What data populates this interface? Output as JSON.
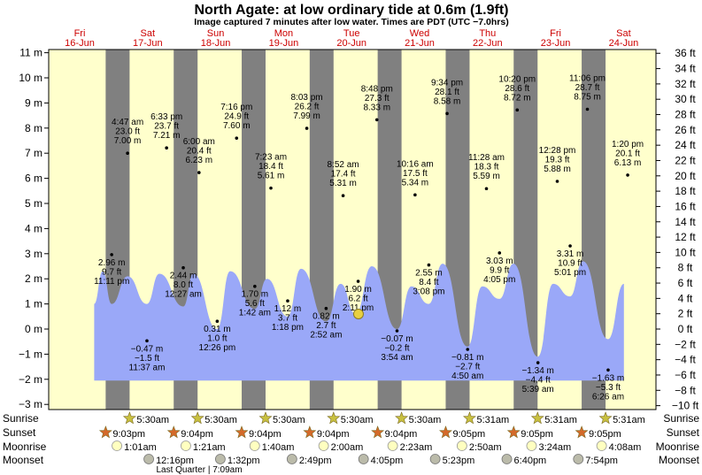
{
  "title": "North Agate: at low  ordinary tide at 0.6m (1.9ft)",
  "subtitle": "Image captured 7 minutes after low water. Times are PDT (UTC −7.0hrs)",
  "colors": {
    "day": "#ffffcc",
    "night": "#808080",
    "water": "#9aa8f8",
    "date_text": "#cc0000",
    "sun_star": "#c8c040",
    "set_star": "#d46a2a",
    "moon": "#ffffc0",
    "moonset": "#bbbbaa",
    "current_marker": "#e8d040"
  },
  "days": [
    {
      "weekday": "Fri",
      "date": "16-Jun"
    },
    {
      "weekday": "Sat",
      "date": "17-Jun"
    },
    {
      "weekday": "Sun",
      "date": "18-Jun"
    },
    {
      "weekday": "Mon",
      "date": "19-Jun"
    },
    {
      "weekday": "Tue",
      "date": "20-Jun"
    },
    {
      "weekday": "Wed",
      "date": "21-Jun"
    },
    {
      "weekday": "Thu",
      "date": "22-Jun"
    },
    {
      "weekday": "Fri",
      "date": "23-Jun"
    },
    {
      "weekday": "Sat",
      "date": "24-Jun"
    }
  ],
  "left_axis": [
    "11 m",
    "10 m",
    "9 m",
    "8 m",
    "7 m",
    "6 m",
    "5 m",
    "4 m",
    "3 m",
    "2 m",
    "1 m",
    "0 m",
    "−1 m",
    "−2 m",
    "−3 m"
  ],
  "right_axis": [
    "36 ft",
    "34 ft",
    "32 ft",
    "30 ft",
    "28 ft",
    "26 ft",
    "24 ft",
    "22 ft",
    "20 ft",
    "18 ft",
    "16 ft",
    "14 ft",
    "12 ft",
    "10 ft",
    "8 ft",
    "6 ft",
    "4 ft",
    "2 ft",
    "0 ft",
    "−2 ft",
    "−4 ft",
    "−6 ft",
    "−8 ft",
    "−10 ft"
  ],
  "row_labels": [
    "Sunrise",
    "Sunset",
    "Moonrise",
    "Moonset"
  ],
  "chart_data": {
    "type": "area",
    "title": "North Agate: at low  ordinary tide at 0.6m (1.9ft)",
    "xlabel": "",
    "ylabel": "",
    "y_unit_left": "m",
    "y_unit_right": "ft",
    "ylim_m": [
      -3.2,
      11.2
    ],
    "ylim_ft": [
      -10.5,
      36.7
    ],
    "grid": false,
    "current_level_m": 0.6,
    "tide_points": [
      {
        "day": 0,
        "hour": 23.18,
        "m": 2.96,
        "label": [
          "2.96 m",
          "9.7 ft",
          "11:11 pm"
        ]
      },
      {
        "day": 1,
        "hour": 4.78,
        "m": 7.0,
        "label": [
          "4:47 am",
          "23.0 ft",
          "7.00 m"
        ]
      },
      {
        "day": 1,
        "hour": 11.62,
        "m": -0.47,
        "label": [
          "−0.47 m",
          "−1.5 ft",
          "11:37 am"
        ]
      },
      {
        "day": 1,
        "hour": 18.55,
        "m": 7.21,
        "label": [
          "6:33 pm",
          "23.7 ft",
          "7.21 m"
        ]
      },
      {
        "day": 2,
        "hour": 0.45,
        "m": 2.44,
        "label": [
          "2.44 m",
          "8.0 ft",
          "12:27 am"
        ]
      },
      {
        "day": 2,
        "hour": 6.0,
        "m": 6.23,
        "label": [
          "6:00 am",
          "20.4 ft",
          "6.23 m"
        ]
      },
      {
        "day": 2,
        "hour": 12.43,
        "m": 0.31,
        "label": [
          "0.31 m",
          "1.0 ft",
          "12:26 pm"
        ]
      },
      {
        "day": 2,
        "hour": 19.27,
        "m": 7.6,
        "label": [
          "7:16 pm",
          "24.9 ft",
          "7.60 m"
        ]
      },
      {
        "day": 3,
        "hour": 1.7,
        "m": 1.7,
        "label": [
          "1.70 m",
          "5.6 ft",
          "1:42 am"
        ]
      },
      {
        "day": 3,
        "hour": 7.38,
        "m": 5.61,
        "label": [
          "7:23 am",
          "18.4 ft",
          "5.61 m"
        ]
      },
      {
        "day": 3,
        "hour": 13.3,
        "m": 1.12,
        "label": [
          "1.12 m",
          "3.7 ft",
          "1:18 pm"
        ]
      },
      {
        "day": 3,
        "hour": 20.05,
        "m": 7.99,
        "label": [
          "8:03 pm",
          "26.2 ft",
          "7.99 m"
        ]
      },
      {
        "day": 4,
        "hour": 2.87,
        "m": 0.82,
        "label": [
          "0.82 m",
          "2.7 ft",
          "2:52 am"
        ]
      },
      {
        "day": 4,
        "hour": 8.87,
        "m": 5.31,
        "label": [
          "8:52 am",
          "17.4 ft",
          "5.31 m"
        ]
      },
      {
        "day": 4,
        "hour": 14.18,
        "m": 1.9,
        "label": [
          "1.90 m",
          "6.2 ft",
          "2:11 pm"
        ]
      },
      {
        "day": 4,
        "hour": 20.8,
        "m": 8.33,
        "label": [
          "8:48 pm",
          "27.3 ft",
          "8.33 m"
        ]
      },
      {
        "day": 5,
        "hour": 3.9,
        "m": -0.07,
        "label": [
          "−0.07 m",
          "−0.2 ft",
          "3:54 am"
        ]
      },
      {
        "day": 5,
        "hour": 10.27,
        "m": 5.34,
        "label": [
          "10:16 am",
          "17.5 ft",
          "5.34 m"
        ]
      },
      {
        "day": 5,
        "hour": 15.13,
        "m": 2.55,
        "label": [
          "2.55 m",
          "8.4 ft",
          "3:08 pm"
        ]
      },
      {
        "day": 5,
        "hour": 21.57,
        "m": 8.58,
        "label": [
          "9:34 pm",
          "28.1 ft",
          "8.58 m"
        ]
      },
      {
        "day": 6,
        "hour": 4.83,
        "m": -0.81,
        "label": [
          "−0.81 m",
          "−2.7 ft",
          "4:50 am"
        ]
      },
      {
        "day": 6,
        "hour": 11.47,
        "m": 5.59,
        "label": [
          "11:28 am",
          "18.3 ft",
          "5.59 m"
        ]
      },
      {
        "day": 6,
        "hour": 16.08,
        "m": 3.03,
        "label": [
          "3.03 m",
          "9.9 ft",
          "4:05 pm"
        ]
      },
      {
        "day": 6,
        "hour": 22.33,
        "m": 8.72,
        "label": [
          "10:20 pm",
          "28.6 ft",
          "8.72 m"
        ]
      },
      {
        "day": 7,
        "hour": 5.65,
        "m": -1.34,
        "label": [
          "−1.34 m",
          "−4.4 ft",
          "5:39 am"
        ]
      },
      {
        "day": 7,
        "hour": 12.47,
        "m": 5.88,
        "label": [
          "12:28 pm",
          "19.3 ft",
          "5.88 m"
        ]
      },
      {
        "day": 7,
        "hour": 17.02,
        "m": 3.31,
        "label": [
          "3.31 m",
          "10.9 ft",
          "5:01 pm"
        ]
      },
      {
        "day": 7,
        "hour": 23.1,
        "m": 8.75,
        "label": [
          "11:06 pm",
          "28.7 ft",
          "8.75 m"
        ]
      },
      {
        "day": 8,
        "hour": 6.43,
        "m": -1.63,
        "label": [
          "−1.63 m",
          "−5.3 ft",
          "6:26 am"
        ]
      },
      {
        "day": 8,
        "hour": 13.33,
        "m": 6.13,
        "label": [
          "1:20 pm",
          "20.1 ft",
          "6.13 m"
        ]
      }
    ],
    "curve": [
      {
        "day": 0,
        "hour": 17.0,
        "m": 1.0
      },
      {
        "day": 0,
        "hour": 20.0,
        "m": 2.3
      },
      {
        "day": 0,
        "hour": 23.2,
        "m": 1.0
      },
      {
        "day": 1,
        "hour": 4.8,
        "m": 2.1
      },
      {
        "day": 1,
        "hour": 11.6,
        "m": 1.0
      },
      {
        "day": 1,
        "hour": 16.0,
        "m": 2.2
      },
      {
        "day": 2,
        "hour": 0.5,
        "m": 0.9
      },
      {
        "day": 2,
        "hour": 4.0,
        "m": 2.2
      },
      {
        "day": 2,
        "hour": 12.4,
        "m": 0.0
      },
      {
        "day": 2,
        "hour": 17.0,
        "m": 2.3
      },
      {
        "day": 3,
        "hour": 1.7,
        "m": 0.8
      },
      {
        "day": 3,
        "hour": 6.0,
        "m": 2.0
      },
      {
        "day": 3,
        "hour": 13.3,
        "m": 0.5
      },
      {
        "day": 3,
        "hour": 18.0,
        "m": 2.4
      },
      {
        "day": 4,
        "hour": 2.9,
        "m": 0.3
      },
      {
        "day": 4,
        "hour": 8.0,
        "m": 1.8
      },
      {
        "day": 4,
        "hour": 13.3,
        "m": 0.6
      },
      {
        "day": 4,
        "hour": 19.0,
        "m": 2.5
      },
      {
        "day": 5,
        "hour": 3.9,
        "m": 0.0
      },
      {
        "day": 5,
        "hour": 9.0,
        "m": 1.7
      },
      {
        "day": 5,
        "hour": 15.1,
        "m": 1.0
      },
      {
        "day": 5,
        "hour": 20.0,
        "m": 2.6
      },
      {
        "day": 6,
        "hour": 4.8,
        "m": -0.7
      },
      {
        "day": 6,
        "hour": 10.0,
        "m": 1.7
      },
      {
        "day": 6,
        "hour": 16.1,
        "m": 1.2
      },
      {
        "day": 6,
        "hour": 21.0,
        "m": 2.6
      },
      {
        "day": 7,
        "hour": 5.6,
        "m": -1.1
      },
      {
        "day": 7,
        "hour": 11.0,
        "m": 1.8
      },
      {
        "day": 7,
        "hour": 17.0,
        "m": 1.3
      },
      {
        "day": 7,
        "hour": 21.5,
        "m": 2.7
      },
      {
        "day": 8,
        "hour": 6.4,
        "m": -0.4
      },
      {
        "day": 8,
        "hour": 12.0,
        "m": 1.8
      }
    ],
    "nights": [
      {
        "day": 0,
        "set": 21.05,
        "rise": 5.5
      },
      {
        "day": 1,
        "set": 21.07,
        "rise": 5.5
      },
      {
        "day": 2,
        "set": 21.07,
        "rise": 5.5
      },
      {
        "day": 3,
        "set": 21.07,
        "rise": 5.5
      },
      {
        "day": 4,
        "set": 21.07,
        "rise": 5.5
      },
      {
        "day": 5,
        "set": 21.08,
        "rise": 5.52
      },
      {
        "day": 6,
        "set": 21.08,
        "rise": 5.52
      },
      {
        "day": 7,
        "set": 21.08,
        "rise": 5.52
      }
    ]
  },
  "sunrise": [
    {
      "day": 1,
      "hour": 5.5,
      "label": "5:30am"
    },
    {
      "day": 2,
      "hour": 5.5,
      "label": "5:30am"
    },
    {
      "day": 3,
      "hour": 5.5,
      "label": "5:30am"
    },
    {
      "day": 4,
      "hour": 5.5,
      "label": "5:30am"
    },
    {
      "day": 5,
      "hour": 5.5,
      "label": "5:30am"
    },
    {
      "day": 6,
      "hour": 5.52,
      "label": "5:31am"
    },
    {
      "day": 7,
      "hour": 5.52,
      "label": "5:31am"
    },
    {
      "day": 8,
      "hour": 5.52,
      "label": "5:31am"
    }
  ],
  "sunset": [
    {
      "day": 0,
      "hour": 21.05,
      "label": "9:03pm"
    },
    {
      "day": 1,
      "hour": 21.07,
      "label": "9:04pm"
    },
    {
      "day": 2,
      "hour": 21.07,
      "label": "9:04pm"
    },
    {
      "day": 3,
      "hour": 21.07,
      "label": "9:04pm"
    },
    {
      "day": 4,
      "hour": 21.07,
      "label": "9:04pm"
    },
    {
      "day": 5,
      "hour": 21.08,
      "label": "9:05pm"
    },
    {
      "day": 6,
      "hour": 21.08,
      "label": "9:05pm"
    },
    {
      "day": 7,
      "hour": 21.08,
      "label": "9:05pm"
    }
  ],
  "moonrise": [
    {
      "day": 1,
      "hour": 1.02,
      "label": "1:01am"
    },
    {
      "day": 2,
      "hour": 1.35,
      "label": "1:21am"
    },
    {
      "day": 3,
      "hour": 1.67,
      "label": "1:40am"
    },
    {
      "day": 4,
      "hour": 2.0,
      "label": "2:00am"
    },
    {
      "day": 5,
      "hour": 2.38,
      "label": "2:23am"
    },
    {
      "day": 6,
      "hour": 2.83,
      "label": "2:50am"
    },
    {
      "day": 7,
      "hour": 3.4,
      "label": "3:24am"
    },
    {
      "day": 8,
      "hour": 4.13,
      "label": "4:08am"
    }
  ],
  "moonset": [
    {
      "day": 1,
      "hour": 12.27,
      "label": "12:16pm"
    },
    {
      "day": 2,
      "hour": 13.53,
      "label": "1:32pm"
    },
    {
      "day": 3,
      "hour": 14.82,
      "label": "2:49pm"
    },
    {
      "day": 4,
      "hour": 16.08,
      "label": "4:05pm"
    },
    {
      "day": 5,
      "hour": 17.38,
      "label": "5:23pm"
    },
    {
      "day": 6,
      "hour": 18.67,
      "label": "6:40pm"
    },
    {
      "day": 7,
      "hour": 19.9,
      "label": "7:54pm"
    }
  ],
  "moon_phase": {
    "label": "Last Quarter | 7:09am",
    "day": 2,
    "hour": 7.15
  },
  "current_time": {
    "day": 4,
    "hour": 14.3
  }
}
